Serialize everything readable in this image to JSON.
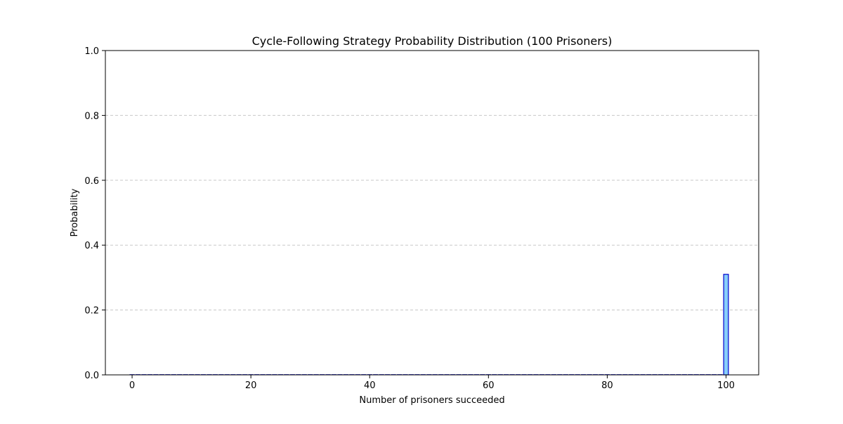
{
  "chart_data": {
    "type": "bar",
    "title": "Cycle-Following Strategy Probability Distribution (100 Prisoners)",
    "xlabel": "Number of prisoners succeeded",
    "ylabel": "Probability",
    "xlim": [
      -4.5,
      105.5
    ],
    "ylim": [
      0.0,
      1.0
    ],
    "x_ticks": [
      0,
      20,
      40,
      60,
      80,
      100
    ],
    "y_ticks": [
      0.0,
      0.2,
      0.4,
      0.6,
      0.8,
      1.0
    ],
    "x_tick_labels": [
      "0",
      "20",
      "40",
      "60",
      "80",
      "100"
    ],
    "y_tick_labels": [
      "0.0",
      "0.2",
      "0.4",
      "0.6",
      "0.8",
      "1.0"
    ],
    "grid": {
      "axis": "y",
      "style": "dashed"
    },
    "bar_fill_color": "#87cefa",
    "bar_edge_color": "#0000cd",
    "grid_color": "#c8c8c8",
    "nonzero_bars": [
      {
        "x": 100,
        "y": 0.31
      }
    ],
    "x_range": [
      0,
      100
    ],
    "default_value": 0.0
  }
}
